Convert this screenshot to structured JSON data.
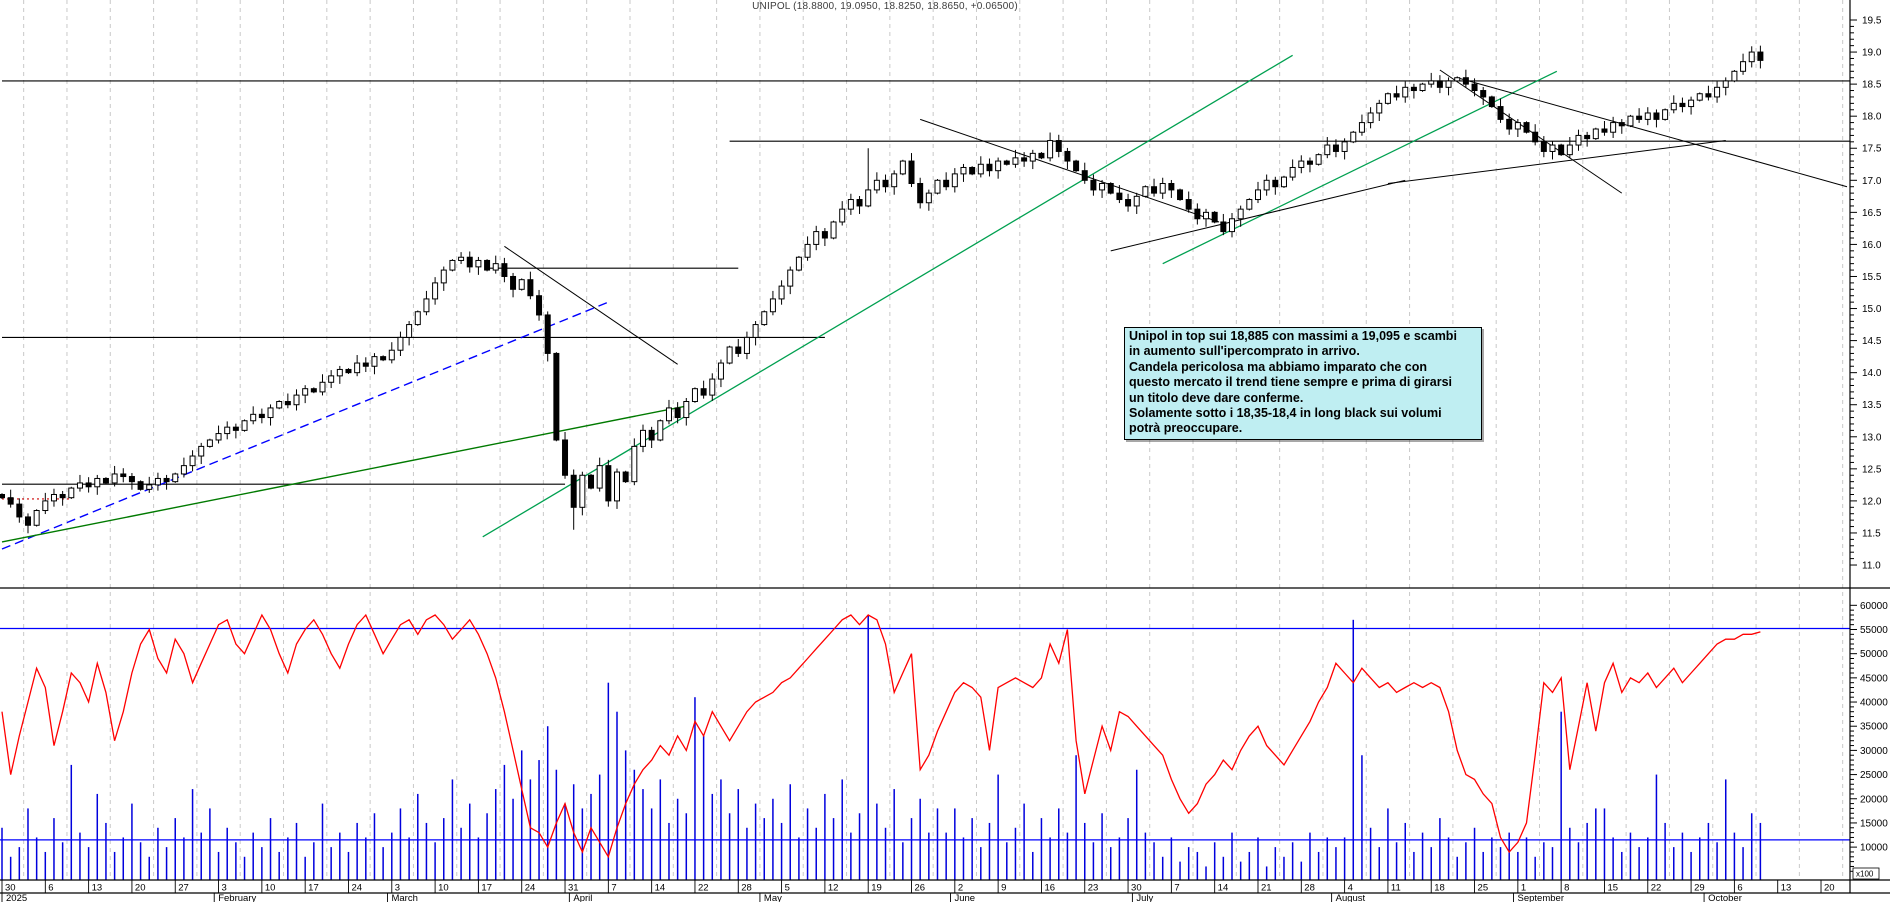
{
  "chart_title": "UNIPOL (18.8800, 19.0950, 18.8250, 18.8650, +0.06500)",
  "annotation": {
    "bg": "#bfeef2",
    "border": "#000000",
    "lines": [
      "Unipol in top sui 18,885 con massimi a 19,095 e scambi",
      "in aumento sull'ipercomprato in arrivo.",
      "Candela pericolosa ma abbiamo imparato che con",
      "questo mercato il trend tiene sempre e prima di girarsi",
      "un titolo deve dare conferme.",
      "Solamente sotto i 18,35-18,4 in long black sui volumi",
      "potrà preoccupare."
    ]
  },
  "chart_data": {
    "type": "candlestick+volume",
    "symbol": "UNIPOL",
    "last_quote": {
      "open": 18.88,
      "high": 19.095,
      "low": 18.825,
      "close": 18.865,
      "change": 0.065
    },
    "price_axis": {
      "min": 11.0,
      "max": 19.5,
      "major_step": 0.5,
      "minor_step": 0.1,
      "labels": [
        "19.5",
        "19.0",
        "18.5",
        "18.0",
        "17.5",
        "17.0",
        "16.5",
        "16.0",
        "15.5",
        "15.0",
        "14.5",
        "14.0",
        "13.5",
        "13.0",
        "12.5",
        "12.0",
        "11.5",
        "11.0"
      ]
    },
    "volume_axis": {
      "min": 10000,
      "max": 60000,
      "major_step": 5000,
      "minor_step": 1000,
      "unit_label": "x100",
      "labels": [
        "60000",
        "55000",
        "50000",
        "45000",
        "40000",
        "35000",
        "30000",
        "25000",
        "20000",
        "15000",
        "10000"
      ]
    },
    "x_axis": {
      "days_per_week": 5,
      "total_days": 214,
      "week_labels": [
        "30",
        "6",
        "13",
        "20",
        "27",
        "3",
        "10",
        "17",
        "24",
        "3",
        "10",
        "17",
        "24",
        "31",
        "7",
        "14",
        "22",
        "28",
        "5",
        "12",
        "19",
        "26",
        "2",
        "9",
        "16",
        "23",
        "30",
        "7",
        "14",
        "21",
        "28",
        "4",
        "11",
        "18",
        "25",
        "1",
        "8",
        "15",
        "22",
        "29",
        "6",
        "13",
        "20"
      ],
      "month_labels": [
        {
          "label": "2025",
          "start_day": 0
        },
        {
          "label": "February",
          "start_day": 24.5
        },
        {
          "label": "March",
          "start_day": 44.5
        },
        {
          "label": "April",
          "start_day": 65.5
        },
        {
          "label": "May",
          "start_day": 87.5
        },
        {
          "label": "June",
          "start_day": 109.5
        },
        {
          "label": "July",
          "start_day": 130.5
        },
        {
          "label": "August",
          "start_day": 153.5
        },
        {
          "label": "September",
          "start_day": 174.5
        },
        {
          "label": "October",
          "start_day": 196.5
        }
      ]
    },
    "closes": [
      12.05,
      11.95,
      11.75,
      11.62,
      11.85,
      12.0,
      12.1,
      12.05,
      12.2,
      12.28,
      12.22,
      12.35,
      12.28,
      12.42,
      12.38,
      12.3,
      12.18,
      12.25,
      12.35,
      12.3,
      12.42,
      12.55,
      12.7,
      12.85,
      12.95,
      13.05,
      13.15,
      13.1,
      13.25,
      13.35,
      13.3,
      13.45,
      13.55,
      13.5,
      13.65,
      13.75,
      13.7,
      13.85,
      13.95,
      14.05,
      14.0,
      14.15,
      14.1,
      14.25,
      14.2,
      14.35,
      14.55,
      14.75,
      14.95,
      15.15,
      15.4,
      15.6,
      15.75,
      15.8,
      15.65,
      15.75,
      15.6,
      15.7,
      15.5,
      15.3,
      15.45,
      15.2,
      14.9,
      14.3,
      12.95,
      12.4,
      11.9,
      12.4,
      12.2,
      12.55,
      12.0,
      12.45,
      12.3,
      12.85,
      13.1,
      12.95,
      13.25,
      13.45,
      13.3,
      13.55,
      13.75,
      13.65,
      13.9,
      14.15,
      14.4,
      14.3,
      14.55,
      14.75,
      14.95,
      15.15,
      15.35,
      15.6,
      15.8,
      16.0,
      16.2,
      16.1,
      16.35,
      16.55,
      16.7,
      16.6,
      16.85,
      17.0,
      16.9,
      17.1,
      17.3,
      16.95,
      16.65,
      16.8,
      17.0,
      16.9,
      17.1,
      17.2,
      17.1,
      17.25,
      17.15,
      17.3,
      17.25,
      17.35,
      17.3,
      17.42,
      17.35,
      17.62,
      17.45,
      17.3,
      17.15,
      17.0,
      16.85,
      16.95,
      16.8,
      16.7,
      16.6,
      16.75,
      16.9,
      16.8,
      16.95,
      16.85,
      16.7,
      16.55,
      16.4,
      16.5,
      16.35,
      16.2,
      16.4,
      16.55,
      16.7,
      16.85,
      17.0,
      16.9,
      17.05,
      17.2,
      17.3,
      17.25,
      17.4,
      17.55,
      17.45,
      17.6,
      17.75,
      17.9,
      18.05,
      18.2,
      18.35,
      18.3,
      18.45,
      18.4,
      18.5,
      18.55,
      18.45,
      18.55,
      18.6,
      18.5,
      18.4,
      18.3,
      18.15,
      17.95,
      17.8,
      17.9,
      17.75,
      17.6,
      17.45,
      17.55,
      17.4,
      17.55,
      17.7,
      17.65,
      17.8,
      17.75,
      17.9,
      17.85,
      18.0,
      17.95,
      18.05,
      17.95,
      18.1,
      18.2,
      18.15,
      18.25,
      18.35,
      18.3,
      18.45,
      18.55,
      18.7,
      18.85,
      19.0,
      18.87
    ],
    "first_open": 12.1,
    "wick_overrides": {
      "53": {
        "high": 15.88
      },
      "66": {
        "low": 11.55
      },
      "100": {
        "high": 17.5
      },
      "203": {
        "high": 19.1
      }
    },
    "volumes": [
      14000,
      8000,
      10000,
      18000,
      12000,
      9000,
      16000,
      11000,
      27000,
      13000,
      10000,
      21000,
      15000,
      9000,
      12000,
      19000,
      11000,
      8000,
      14000,
      10000,
      16000,
      12000,
      22000,
      13000,
      18000,
      9000,
      14000,
      11000,
      8000,
      13000,
      10000,
      16000,
      9000,
      12000,
      15000,
      8000,
      11000,
      19000,
      10000,
      13000,
      9000,
      15000,
      12000,
      17000,
      10000,
      13000,
      18000,
      12000,
      21000,
      15000,
      11000,
      16000,
      24000,
      14000,
      19000,
      12000,
      17000,
      22000,
      27000,
      20000,
      30000,
      24000,
      28000,
      35000,
      26000,
      19000,
      23000,
      18000,
      21000,
      25000,
      44000,
      38000,
      30000,
      26000,
      22000,
      18000,
      24000,
      15000,
      20000,
      17000,
      41000,
      33000,
      21000,
      24000,
      17000,
      22000,
      14000,
      19000,
      16000,
      20000,
      15000,
      23000,
      12000,
      18000,
      14000,
      21000,
      16000,
      24000,
      13000,
      17000,
      58000,
      19000,
      14000,
      22000,
      11000,
      16000,
      20000,
      13000,
      18000,
      13000,
      18000,
      12000,
      16000,
      10000,
      15000,
      25000,
      11000,
      14000,
      19000,
      9000,
      16000,
      12000,
      18000,
      13000,
      29000,
      15000,
      11000,
      17000,
      10000,
      12000,
      16000,
      26000,
      13000,
      11000,
      8000,
      12000,
      7000,
      10000,
      9000,
      6000,
      11000,
      8000,
      13000,
      7000,
      9000,
      12000,
      6000,
      10000,
      8000,
      11000,
      7000,
      13000,
      9000,
      12000,
      10000,
      12000,
      57000,
      29000,
      14000,
      10000,
      18000,
      11000,
      15000,
      9000,
      13000,
      10000,
      16000,
      12000,
      8000,
      11000,
      14000,
      9000,
      12000,
      10000,
      13000,
      9000,
      12000,
      8000,
      11000,
      10000,
      38000,
      14000,
      11000,
      15000,
      18000,
      18000,
      12000,
      9000,
      13000,
      10000,
      12000,
      25000,
      15000,
      10000,
      13000,
      9000,
      12000,
      15000,
      11000,
      24000,
      13000,
      10000,
      17000,
      15000
    ],
    "indicator": {
      "name": "red-volume-oscillator",
      "color": "#ff0000",
      "values": [
        38000,
        25000,
        33000,
        40000,
        47000,
        43000,
        31000,
        38000,
        46000,
        44000,
        40000,
        48000,
        42000,
        32000,
        38000,
        46000,
        52000,
        55000,
        49000,
        46000,
        53000,
        50000,
        44000,
        48000,
        52000,
        56000,
        57000,
        52000,
        50000,
        54000,
        58000,
        55000,
        50000,
        46000,
        52000,
        55000,
        57000,
        54000,
        50000,
        47000,
        52000,
        56000,
        58000,
        54000,
        50000,
        53000,
        56000,
        57000,
        54000,
        57000,
        58000,
        56000,
        53000,
        55000,
        57000,
        54000,
        50000,
        45000,
        38000,
        30000,
        22000,
        14000,
        13000,
        10000,
        15000,
        19000,
        13000,
        9000,
        14000,
        11000,
        8000,
        14000,
        19000,
        23000,
        26000,
        28000,
        31000,
        29000,
        33000,
        30000,
        36000,
        33000,
        38000,
        35000,
        32000,
        35000,
        38000,
        40000,
        41000,
        42000,
        44000,
        45000,
        47000,
        49000,
        51000,
        53000,
        55000,
        57000,
        58000,
        56000,
        58000,
        57000,
        52000,
        42000,
        46000,
        50000,
        26000,
        29000,
        34000,
        38000,
        42000,
        44000,
        43000,
        41000,
        30000,
        43000,
        44000,
        45000,
        44000,
        43000,
        45000,
        52000,
        48000,
        55000,
        32000,
        21000,
        28000,
        35000,
        30000,
        38000,
        37000,
        35000,
        33000,
        31000,
        29000,
        24000,
        20000,
        17000,
        19000,
        23000,
        25000,
        28000,
        26000,
        30000,
        33000,
        35000,
        31000,
        29000,
        27000,
        30000,
        33000,
        36000,
        40000,
        43000,
        48000,
        46000,
        44000,
        47000,
        45000,
        43000,
        44000,
        42000,
        43000,
        44000,
        43000,
        44000,
        43000,
        38000,
        30000,
        25000,
        24000,
        21000,
        19000,
        12000,
        9000,
        11000,
        15000,
        29000,
        44000,
        42000,
        45000,
        26000,
        35000,
        44000,
        34000,
        44000,
        48000,
        42000,
        45000,
        44000,
        46000,
        43000,
        45000,
        47000,
        44000,
        46000,
        48000,
        50000,
        52000,
        53000,
        53000,
        54000,
        54000,
        54500
      ]
    },
    "volume_threshold_lines": [
      {
        "value": 55200,
        "color": "#0000ff"
      },
      {
        "value": 11500,
        "color": "#0000ff"
      }
    ],
    "price_hlines": [
      {
        "price": 18.55,
        "d1": 0,
        "d2": 213.5,
        "color": "#000000"
      },
      {
        "price": 17.61,
        "d1": 84,
        "d2": 213.5,
        "color": "#000000"
      },
      {
        "price": 15.63,
        "d1": 56,
        "d2": 85,
        "color": "#000000"
      },
      {
        "price": 14.55,
        "d1": 0,
        "d2": 95,
        "color": "#000000"
      },
      {
        "price": 12.26,
        "d1": 0,
        "d2": 65,
        "color": "#000000"
      },
      {
        "price": 12.03,
        "d1": 0,
        "d2": 8,
        "color": "#cc0000",
        "dash": "2,3"
      }
    ],
    "trendlines": [
      {
        "name": "blue-dashed-uptrend",
        "d1": 0,
        "p1": 11.25,
        "d2": 70,
        "p2": 15.1,
        "color": "#0000ff",
        "dash": "9,5",
        "width": 1.4
      },
      {
        "name": "green-support-jan-apr",
        "d1": 0,
        "p1": 11.36,
        "d2": 79,
        "p2": 13.48,
        "color": "#007a00",
        "width": 1.4
      },
      {
        "name": "green-major-uptrend",
        "d1": 55.5,
        "p1": 11.44,
        "d2": 149,
        "p2": 18.95,
        "color": "#00a050",
        "width": 1.3
      },
      {
        "name": "green-uptrend-2",
        "d1": 134,
        "p1": 15.7,
        "d2": 179.5,
        "p2": 18.7,
        "color": "#00a050",
        "width": 1.3
      },
      {
        "name": "desc-march",
        "d1": 58,
        "p1": 15.97,
        "d2": 78,
        "p2": 14.13,
        "color": "#000000",
        "width": 1
      },
      {
        "name": "desc-june-july",
        "d1": 106,
        "p1": 17.95,
        "d2": 140.5,
        "p2": 16.35,
        "color": "#000000",
        "width": 1
      },
      {
        "name": "asc-july",
        "d1": 128,
        "p1": 15.9,
        "d2": 162,
        "p2": 17.0,
        "color": "#000000",
        "width": 1
      },
      {
        "name": "asc-september",
        "d1": 160,
        "p1": 16.95,
        "d2": 199,
        "p2": 17.62,
        "color": "#000000",
        "width": 1
      },
      {
        "name": "desc-aug-steep",
        "d1": 166,
        "p1": 18.72,
        "d2": 187,
        "p2": 16.8,
        "color": "#000000",
        "width": 1
      },
      {
        "name": "desc-aug-shallow",
        "d1": 168,
        "p1": 18.6,
        "d2": 213,
        "p2": 16.9,
        "color": "#000000",
        "width": 1
      }
    ],
    "colors": {
      "up_candle": "#ffffff",
      "down_candle": "#000000",
      "candle_outline": "#000000",
      "volume_bar": "#0000dd",
      "grid": "#c9c9c9",
      "axis": "#000000",
      "label_text": "#000000"
    }
  }
}
